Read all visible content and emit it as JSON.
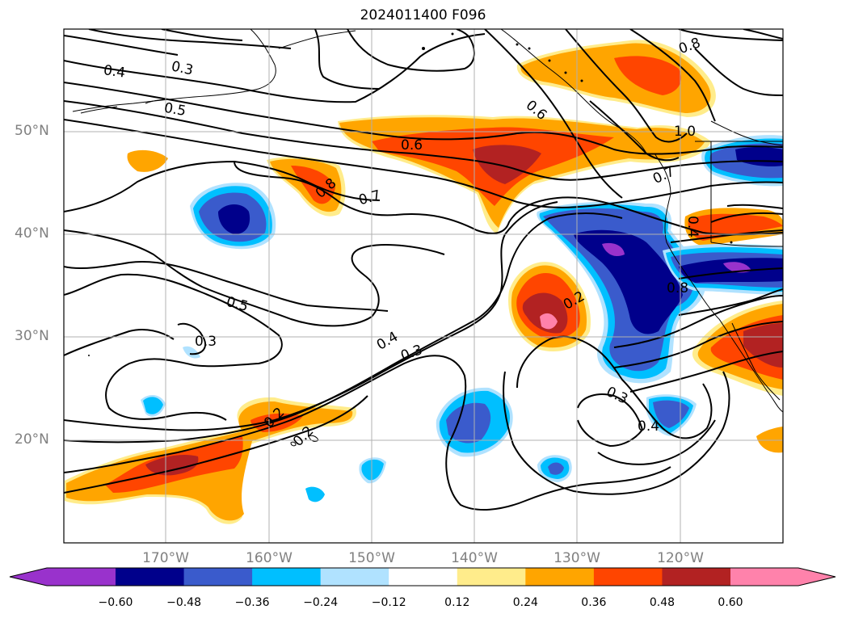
{
  "title": "2024011400 F096",
  "lat_labels": [
    "50°N",
    "40°N",
    "30°N",
    "20°N"
  ],
  "lon_labels": [
    "170°W",
    "160°W",
    "150°W",
    "140°W",
    "130°W",
    "120°W"
  ],
  "colorbar": {
    "ticks": [
      "−0.60",
      "−0.48",
      "−0.36",
      "−0.24",
      "−0.12",
      "0.12",
      "0.24",
      "0.36",
      "0.48",
      "0.60"
    ],
    "colors": [
      "#9932cc",
      "#00008b",
      "#3a5bcc",
      "#00bfff",
      "#b0e2ff",
      "#ffffff",
      "#ffec8b",
      "#ffa500",
      "#ff4500",
      "#b22222",
      "#ff82ab"
    ]
  },
  "contour_labels": [
    "0.4",
    "0.3",
    "0.5",
    "0.6",
    "0.6",
    "0.8",
    "0.7",
    "1.0",
    "0.7",
    "0.8",
    "0.4",
    "0.8",
    "0.5",
    "0.3",
    "0.4",
    "0.3",
    "0.2",
    "0.3",
    "0.4",
    "0.2",
    "0.2"
  ]
}
